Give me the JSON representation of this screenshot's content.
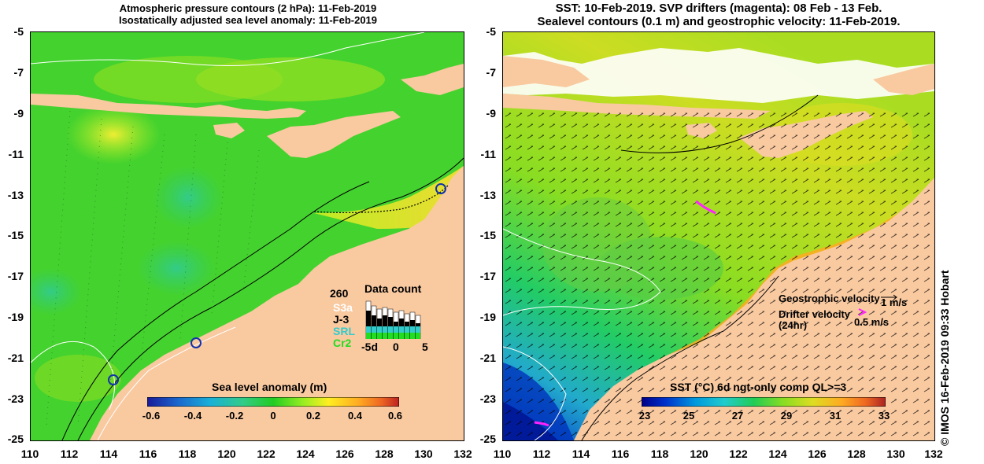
{
  "left_panel": {
    "title_line1": "Atmospheric pressure contours (2 hPa): 11-Feb-2019",
    "title_line2": "Isostatically adjusted sea level anomaly: 11-Feb-2019",
    "colorbar_title": "Sea level anomaly (m)",
    "colorbar_ticks": [
      "-0.6",
      "-0.4",
      "-0.2",
      "0",
      "0.2",
      "0.4",
      "0.6"
    ],
    "data_count": {
      "title": "Data count",
      "max_label": "260",
      "missions": [
        {
          "name": "S3a",
          "color": "#ffffff"
        },
        {
          "name": "J-3",
          "color": "#000000"
        },
        {
          "name": "SRL",
          "color": "#33cccc"
        },
        {
          "name": "Cr2",
          "color": "#22dd22"
        }
      ],
      "x_ticks": [
        "-5d",
        "0",
        "5"
      ]
    }
  },
  "right_panel": {
    "title_line1": "SST: 10-Feb-2019. SVP drifters (magenta): 08 Feb - 13 Feb.",
    "title_line2": "Sealevel contours (0.1 m) and geostrophic velocity: 11-Feb-2019.",
    "colorbar_title": "SST (°C) 6d ngt-only comp QL>=3",
    "colorbar_ticks": [
      "23",
      "25",
      "27",
      "29",
      "31",
      "33"
    ],
    "legend": {
      "geostrophic_label": "Geostrophic velocity",
      "geostrophic_scale": "1 m/s",
      "drifter_label_line1": "Drifter velocity",
      "drifter_label_line2": "(24hr)",
      "drifter_scale": "0.5 m/s"
    }
  },
  "axes": {
    "lat_ticks": [
      "-5",
      "-7",
      "-9",
      "-11",
      "-13",
      "-15",
      "-17",
      "-19",
      "-21",
      "-23",
      "-25"
    ],
    "lon_ticks": [
      "110",
      "112",
      "114",
      "116",
      "118",
      "120",
      "122",
      "124",
      "126",
      "128",
      "130",
      "132"
    ]
  },
  "credit": "© IMOS 16-Feb-2019 09:33 Hobart",
  "colors": {
    "land": "#f9c9a0",
    "sla_colormap": [
      "#1a1a99",
      "#1a66cc",
      "#1ab0d8",
      "#33cc88",
      "#22cc22",
      "#99ee22",
      "#ffee22",
      "#ffaa22",
      "#ee6622",
      "#bb2222"
    ],
    "sst_colormap": [
      "#000088",
      "#0033cc",
      "#0099dd",
      "#22cccc",
      "#22cc55",
      "#88dd22",
      "#dddd22",
      "#ffaa22",
      "#ee6622",
      "#aa2222"
    ]
  }
}
